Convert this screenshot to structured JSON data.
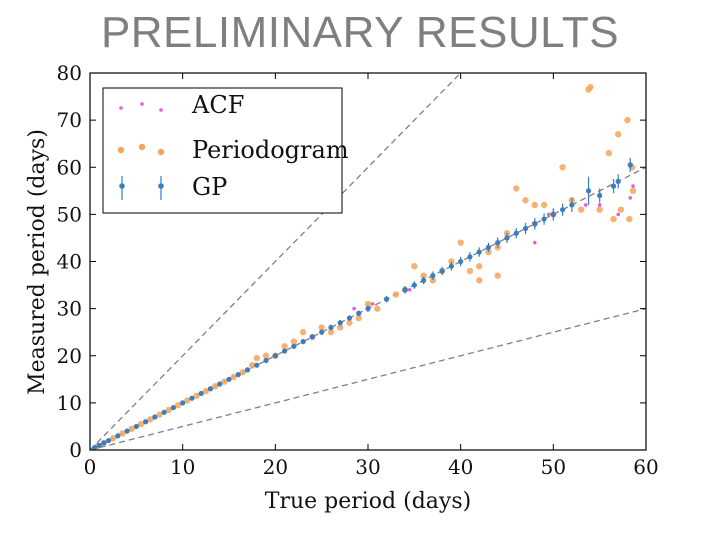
{
  "slide": {
    "title": "PRELIMINARY RESULTS"
  },
  "chart_data": {
    "type": "scatter",
    "title": "",
    "xlabel": "True period (days)",
    "ylabel": "Measured period (days)",
    "xlim": [
      0,
      60
    ],
    "ylim": [
      0,
      80
    ],
    "xticks": [
      0,
      10,
      20,
      30,
      40,
      50,
      60
    ],
    "yticks": [
      0,
      10,
      20,
      30,
      40,
      50,
      60,
      70,
      80
    ],
    "grid": false,
    "legend_position": "top-left",
    "reference_lines": [
      {
        "name": "y = 2x",
        "slope": 2,
        "style": "dashed",
        "color": "#808080"
      },
      {
        "name": "y = x",
        "slope": 1,
        "style": "dashed",
        "color": "#808080"
      },
      {
        "name": "y = x/2",
        "slope": 0.5,
        "style": "dashed",
        "color": "#808080"
      }
    ],
    "series": [
      {
        "name": "Periodogram",
        "marker": "circle",
        "color": "#f5a55a",
        "x": [
          0.8,
          1.5,
          2.5,
          3.5,
          4.5,
          5.5,
          6.5,
          7.5,
          8.5,
          9.5,
          10.5,
          11.5,
          12.5,
          13.5,
          14.5,
          15.5,
          16.5,
          17.5,
          18.0,
          19.0,
          20.0,
          21.0,
          22.0,
          23.0,
          24.0,
          25.0,
          26.0,
          27.0,
          28.0,
          29.0,
          30.0,
          31.0,
          33.0,
          34.0,
          35.0,
          36.0,
          37.0,
          38.0,
          39.0,
          40.0,
          41.0,
          42.0,
          43.0,
          44.0,
          45.0,
          46.0,
          47.0,
          48.0,
          49.0,
          50.0,
          51.0,
          52.0,
          53.0,
          54.0,
          55.0,
          56.0,
          57.0,
          58.0,
          58.5,
          53.8,
          56.5,
          57.3,
          58.2,
          58.6,
          48.0,
          44.0,
          42.0
        ],
        "y": [
          0.8,
          1.5,
          2.5,
          3.5,
          4.5,
          5.5,
          6.5,
          7.5,
          8.5,
          9.5,
          10.5,
          11.5,
          12.5,
          13.5,
          14.5,
          15.5,
          16.5,
          18.0,
          19.5,
          20.0,
          20.0,
          22.0,
          23.0,
          25.0,
          24.0,
          26.0,
          25.0,
          26.0,
          27.0,
          28.0,
          31.0,
          30.0,
          33.0,
          34.0,
          39.0,
          37.0,
          36.0,
          38.0,
          40.0,
          44.0,
          38.0,
          39.0,
          42.0,
          43.0,
          46.0,
          55.5,
          53.0,
          52.0,
          52.0,
          50.0,
          60.0,
          53.0,
          51.0,
          77.0,
          51.0,
          63.0,
          67.0,
          70.0,
          60.0,
          76.5,
          49.0,
          51.0,
          49.0,
          55.0,
          48.0,
          37.0,
          36.0
        ]
      },
      {
        "name": "ACF",
        "marker": "point",
        "color": "#e060d0",
        "x": [
          1.0,
          3.0,
          6.0,
          10.0,
          15.0,
          20.0,
          25.0,
          28.5,
          30.5,
          34.5,
          38.0,
          41.0,
          43.0,
          47.0,
          49.5,
          53.5,
          55.0,
          57.0,
          58.3,
          58.6,
          48.0
        ],
        "y": [
          1.0,
          3.0,
          6.0,
          10.0,
          15.0,
          20.0,
          25.0,
          30.0,
          31.0,
          34.0,
          38.0,
          41.0,
          43.0,
          47.0,
          50.0,
          52.0,
          52.0,
          50.0,
          53.5,
          56.0,
          44.0
        ]
      },
      {
        "name": "GP",
        "marker": "circle-errorbar",
        "color": "#3a7dc0",
        "x": [
          0.5,
          1.0,
          1.5,
          2.0,
          3.0,
          4.0,
          5.0,
          6.0,
          7.0,
          8.0,
          9.0,
          10.0,
          11.0,
          12.0,
          13.0,
          14.0,
          15.0,
          16.0,
          17.0,
          18.0,
          19.0,
          20.0,
          21.0,
          22.0,
          23.0,
          24.0,
          25.0,
          26.0,
          27.0,
          28.0,
          29.0,
          30.0,
          32.0,
          34.0,
          35.0,
          36.0,
          37.0,
          38.0,
          39.0,
          40.0,
          41.0,
          42.0,
          43.0,
          44.0,
          45.0,
          46.0,
          47.0,
          48.0,
          49.0,
          50.0,
          51.0,
          52.0,
          53.8,
          55.0,
          56.5,
          57.0,
          58.3
        ],
        "y": [
          0.5,
          1.0,
          1.5,
          2.0,
          3.0,
          4.0,
          5.0,
          6.0,
          7.0,
          8.0,
          9.0,
          10.0,
          11.0,
          12.0,
          13.0,
          14.0,
          15.0,
          16.0,
          17.0,
          18.0,
          19.0,
          20.0,
          21.0,
          22.0,
          23.0,
          24.0,
          25.0,
          26.0,
          27.0,
          28.0,
          29.0,
          30.0,
          32.0,
          34.0,
          35.0,
          36.0,
          37.0,
          38.0,
          39.0,
          40.0,
          41.0,
          42.0,
          43.0,
          44.0,
          45.0,
          46.0,
          47.0,
          48.0,
          49.0,
          50.0,
          51.0,
          52.0,
          55.0,
          54.0,
          56.0,
          57.0,
          60.5
        ],
        "yerr": [
          0.2,
          0.2,
          0.2,
          0.2,
          0.2,
          0.2,
          0.2,
          0.2,
          0.2,
          0.2,
          0.3,
          0.3,
          0.3,
          0.3,
          0.3,
          0.3,
          0.4,
          0.4,
          0.4,
          0.4,
          0.4,
          0.5,
          0.5,
          0.5,
          0.5,
          0.5,
          0.6,
          0.6,
          0.6,
          0.6,
          0.6,
          0.7,
          0.7,
          0.8,
          0.8,
          0.8,
          0.9,
          0.9,
          0.9,
          1.0,
          1.0,
          1.0,
          1.0,
          1.1,
          1.1,
          1.1,
          1.2,
          1.2,
          1.2,
          1.3,
          1.3,
          1.5,
          3.0,
          1.5,
          1.5,
          1.5,
          1.5
        ]
      }
    ]
  }
}
